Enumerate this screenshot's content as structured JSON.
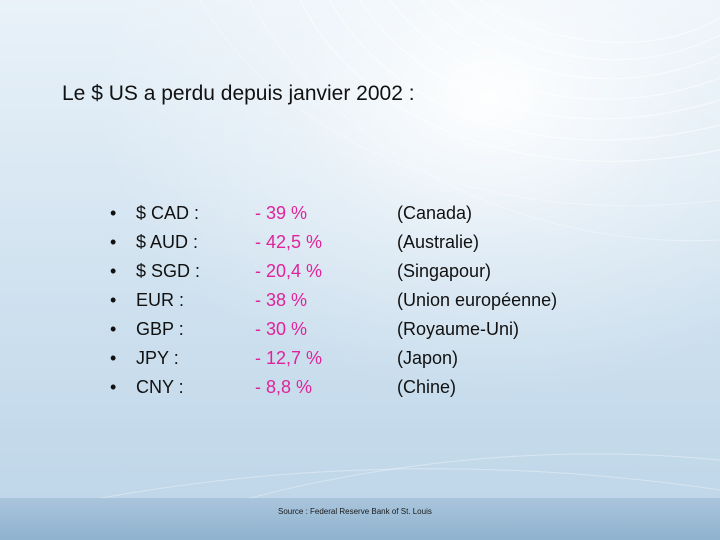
{
  "slide": {
    "title": "Le $ US a perdu depuis janvier 2002 :",
    "bullet_symbol": "•",
    "rows": [
      {
        "code": "$ CAD :",
        "change": "- 39 %",
        "region": "(Canada)"
      },
      {
        "code": "$ AUD :",
        "change": "- 42,5 %",
        "region": "(Australie)"
      },
      {
        "code": "$ SGD :",
        "change": "- 20,4 %",
        "region": "(Singapour)"
      },
      {
        "code": "EUR :",
        "change": "- 38 %",
        "region": "(Union européenne)"
      },
      {
        "code": "GBP :",
        "change": "- 30 %",
        "region": "(Royaume-Uni)"
      },
      {
        "code": "JPY :",
        "change": "- 12,7 %",
        "region": "(Japon)"
      },
      {
        "code": "CNY :",
        "change": " - 8,8 %",
        "region": "(Chine)"
      }
    ],
    "source": "Source : Federal Reserve Bank of St. Louis"
  },
  "colors": {
    "text": "#111111",
    "percent": "#e0239b",
    "background": "#d6e6f2",
    "footer_band": "#9dbcd6"
  }
}
